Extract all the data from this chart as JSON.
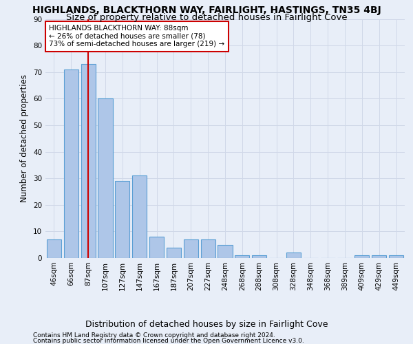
{
  "title": "HIGHLANDS, BLACKTHORN WAY, FAIRLIGHT, HASTINGS, TN35 4BJ",
  "subtitle": "Size of property relative to detached houses in Fairlight Cove",
  "xlabel": "Distribution of detached houses by size in Fairlight Cove",
  "ylabel": "Number of detached properties",
  "footnote1": "Contains HM Land Registry data © Crown copyright and database right 2024.",
  "footnote2": "Contains public sector information licensed under the Open Government Licence v3.0.",
  "categories": [
    "46sqm",
    "66sqm",
    "87sqm",
    "107sqm",
    "127sqm",
    "147sqm",
    "167sqm",
    "187sqm",
    "207sqm",
    "227sqm",
    "248sqm",
    "268sqm",
    "288sqm",
    "308sqm",
    "328sqm",
    "348sqm",
    "368sqm",
    "389sqm",
    "409sqm",
    "429sqm",
    "449sqm"
  ],
  "values": [
    7,
    71,
    73,
    60,
    29,
    31,
    8,
    4,
    7,
    7,
    5,
    1,
    1,
    0,
    2,
    0,
    0,
    0,
    1,
    1,
    1
  ],
  "bar_color": "#aec6e8",
  "bar_edge_color": "#5a9fd4",
  "bar_linewidth": 0.8,
  "grid_color": "#d0d8e8",
  "bg_color": "#e8eef8",
  "plot_bg_color": "#e8eef8",
  "ylim": [
    0,
    90
  ],
  "yticks": [
    0,
    10,
    20,
    30,
    40,
    50,
    60,
    70,
    80,
    90
  ],
  "redline_x": 2,
  "annotation_title": "HIGHLANDS BLACKTHORN WAY: 88sqm",
  "annotation_line1": "← 26% of detached houses are smaller (78)",
  "annotation_line2": "73% of semi-detached houses are larger (219) →",
  "annotation_box_color": "#ffffff",
  "annotation_box_edge": "#cc0000",
  "redline_color": "#cc0000",
  "title_fontsize": 10,
  "subtitle_fontsize": 9.5,
  "xlabel_fontsize": 9,
  "ylabel_fontsize": 8.5,
  "tick_fontsize": 7.5,
  "annotation_fontsize": 7.5,
  "footnote_fontsize": 6.5
}
